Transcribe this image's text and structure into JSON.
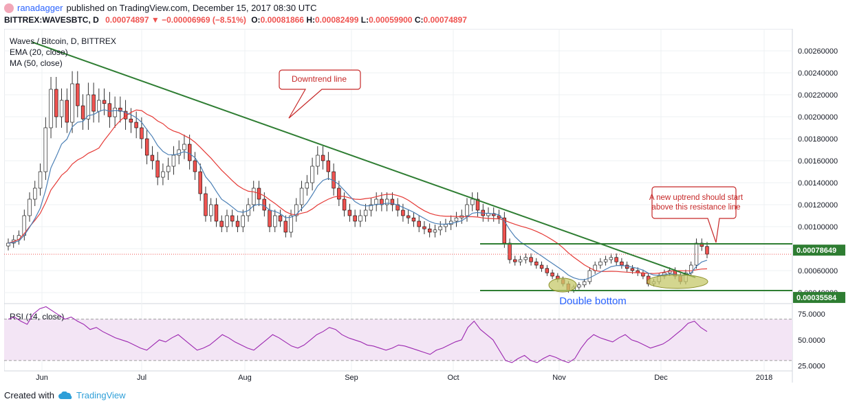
{
  "header": {
    "publisher_user": "ranadagger",
    "publisher_text": "published on TradingView.com, December 15, 2017 08:30 UTC",
    "symbol": "BITTREX:WAVESBTC, D",
    "last": "0.00074897",
    "change": "−0.00006969 (−8.51%)",
    "o_label": "O:",
    "o": "0.00081866",
    "h_label": "H:",
    "h": "0.00082499",
    "l_label": "L:",
    "l": "0.00059900",
    "c_label": "C:",
    "c": "0.00074897"
  },
  "footer": {
    "created_with": "Created with",
    "brand": "TradingView"
  },
  "colors": {
    "up": "#26a69a",
    "down": "#ef5350",
    "candle_up_fill": "#ffffff",
    "candle_outline": "#000000",
    "ema": "#4a7fb5",
    "ma": "#e53935",
    "trendline": "#2e7d32",
    "rsi": "#9c27b0",
    "rsi_band": "#f3e5f5",
    "annotation_border": "#c62828",
    "ellipse": "#c5c86a"
  },
  "chart_data": [
    {
      "type": "candlestick",
      "title": "Waves / Bitcoin, D, BITTREX",
      "indicators": [
        "EMA (20, close)",
        "MA (50, close)"
      ],
      "x_ticks": [
        "Jun",
        "Jul",
        "Aug",
        "Sep",
        "Oct",
        "Nov",
        "Dec",
        "2018"
      ],
      "y_ticks": [
        "0.00260000",
        "0.00240000",
        "0.00220000",
        "0.00200000",
        "0.00180000",
        "0.00160000",
        "0.00140000",
        "0.00120000",
        "0.00100000",
        "0.00080000",
        "0.00060000",
        "0.00040000"
      ],
      "ylim": [
        0.0003,
        0.0028
      ],
      "price_labels": [
        {
          "text": "0.00078649",
          "value": 0.00078649
        },
        {
          "text": "0.00035584",
          "value": 0.00035584
        }
      ],
      "current_price": 0.00074897,
      "close_series": [
        0.00085,
        0.00088,
        0.00092,
        0.0011,
        0.00125,
        0.00135,
        0.0015,
        0.0019,
        0.00225,
        0.002,
        0.00215,
        0.00195,
        0.0023,
        0.0021,
        0.00198,
        0.0022,
        0.00205,
        0.00215,
        0.00212,
        0.002,
        0.00208,
        0.00205,
        0.00198,
        0.00195,
        0.0019,
        0.0018,
        0.00165,
        0.0016,
        0.00145,
        0.0015,
        0.00155,
        0.00165,
        0.0017,
        0.00175,
        0.0016,
        0.0015,
        0.0013,
        0.0011,
        0.0012,
        0.00105,
        0.001,
        0.0011,
        0.00105,
        0.001,
        0.0011,
        0.0012,
        0.00135,
        0.00125,
        0.00115,
        0.001,
        0.0011,
        0.00105,
        0.00095,
        0.0011,
        0.0012,
        0.00135,
        0.0014,
        0.00155,
        0.00165,
        0.0016,
        0.0015,
        0.00135,
        0.00125,
        0.00115,
        0.0011,
        0.00105,
        0.0011,
        0.00115,
        0.0012,
        0.00125,
        0.0012,
        0.00125,
        0.0012,
        0.00115,
        0.0011,
        0.00108,
        0.00105,
        0.001,
        0.00098,
        0.00095,
        0.00097,
        0.001,
        0.00102,
        0.00105,
        0.00108,
        0.0011,
        0.0012,
        0.00125,
        0.00115,
        0.0011,
        0.00112,
        0.0011,
        0.00108,
        0.00085,
        0.0007,
        0.00068,
        0.0007,
        0.00072,
        0.00068,
        0.00065,
        0.00062,
        0.00058,
        0.00055,
        0.00052,
        0.00048,
        0.00042,
        0.00045,
        0.00047,
        0.0005,
        0.0006,
        0.00065,
        0.00068,
        0.0007,
        0.00072,
        0.00068,
        0.00065,
        0.00062,
        0.0006,
        0.00058,
        0.00055,
        0.00048,
        0.0005,
        0.00055,
        0.00058,
        0.0006,
        0.00055,
        0.0005,
        0.00058,
        0.00065,
        0.00085,
        0.00082,
        0.00075
      ],
      "ema_label": "EMA (20, close)",
      "ma_label": "MA (50, close)",
      "annotations": [
        {
          "id": "downtrend",
          "text": "Downtrend line"
        },
        {
          "id": "uptrend",
          "lines": [
            "A new uptrend should start",
            "above this resistance line"
          ]
        },
        {
          "id": "double-bottom",
          "text": "Double bottom"
        }
      ]
    },
    {
      "type": "line",
      "title": "RSI (14, close)",
      "y_ticks": [
        "75.0000",
        "50.0000",
        "25.0000"
      ],
      "ylim": [
        20,
        85
      ],
      "band": [
        30,
        70
      ],
      "values": [
        70,
        72,
        68,
        65,
        75,
        80,
        82,
        78,
        74,
        70,
        72,
        68,
        65,
        60,
        62,
        58,
        55,
        52,
        50,
        48,
        45,
        42,
        40,
        45,
        50,
        48,
        52,
        55,
        50,
        45,
        40,
        42,
        45,
        50,
        55,
        52,
        48,
        45,
        42,
        40,
        45,
        50,
        55,
        52,
        48,
        44,
        42,
        45,
        50,
        55,
        58,
        62,
        60,
        55,
        52,
        50,
        48,
        45,
        44,
        42,
        40,
        42,
        45,
        44,
        42,
        40,
        38,
        36,
        40,
        42,
        45,
        48,
        50,
        62,
        68,
        60,
        55,
        50,
        40,
        30,
        28,
        32,
        35,
        30,
        28,
        32,
        35,
        33,
        30,
        28,
        32,
        42,
        50,
        55,
        52,
        50,
        48,
        52,
        55,
        50,
        48,
        45,
        42,
        44,
        46,
        50,
        55,
        60,
        66,
        68,
        62,
        58
      ]
    }
  ]
}
